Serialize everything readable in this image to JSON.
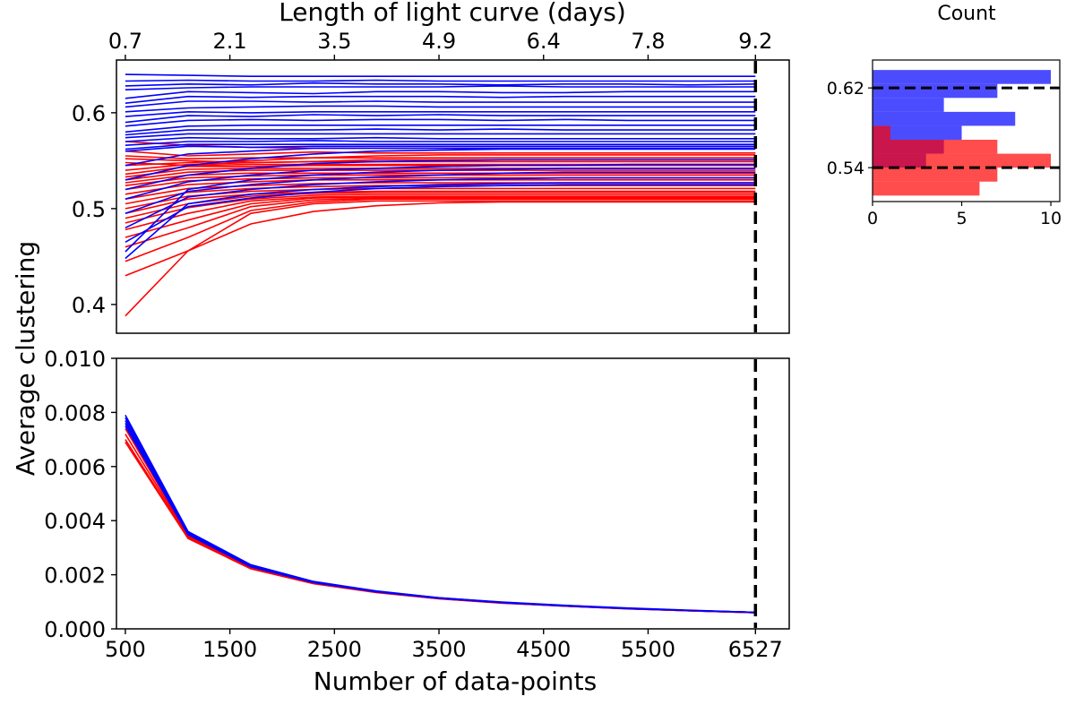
{
  "colors": {
    "blue": "#0000ff",
    "red": "#ff0000",
    "threshold": "#000000"
  },
  "chart_data": [
    {
      "id": "top",
      "type": "line",
      "top_axis_label": "Length of light curve (days)",
      "top_ticks": [
        "0.7",
        "2.1",
        "3.5",
        "4.9",
        "6.4",
        "7.8",
        "9.2"
      ],
      "ylabel": "Average clustering",
      "xlim": [
        415,
        6850
      ],
      "ylim": [
        0.37,
        0.655
      ],
      "yticks": [
        0.4,
        0.5,
        0.6
      ],
      "ytick_labels": [
        "0.4",
        "0.5",
        "0.6"
      ],
      "vline_x": 6527,
      "x": [
        500,
        1100,
        1700,
        2300,
        2900,
        3500,
        4100,
        4700,
        5300,
        5900,
        6527
      ],
      "series_blue": [
        [
          0.64,
          0.639,
          0.638,
          0.638,
          0.638,
          0.638,
          0.638,
          0.638,
          0.638,
          0.638,
          0.638
        ],
        [
          0.633,
          0.634,
          0.633,
          0.633,
          0.634,
          0.633,
          0.633,
          0.633,
          0.633,
          0.633,
          0.633
        ],
        [
          0.628,
          0.63,
          0.629,
          0.631,
          0.63,
          0.63,
          0.629,
          0.63,
          0.63,
          0.629,
          0.63
        ],
        [
          0.624,
          0.626,
          0.627,
          0.627,
          0.627,
          0.627,
          0.628,
          0.627,
          0.627,
          0.627,
          0.627
        ],
        [
          0.615,
          0.622,
          0.621,
          0.62,
          0.622,
          0.622,
          0.621,
          0.621,
          0.622,
          0.622,
          0.622
        ],
        [
          0.61,
          0.617,
          0.616,
          0.617,
          0.617,
          0.617,
          0.616,
          0.617,
          0.617,
          0.617,
          0.617
        ],
        [
          0.606,
          0.612,
          0.612,
          0.611,
          0.612,
          0.611,
          0.611,
          0.611,
          0.611,
          0.611,
          0.611
        ],
        [
          0.601,
          0.605,
          0.606,
          0.607,
          0.607,
          0.606,
          0.606,
          0.606,
          0.606,
          0.606,
          0.606
        ],
        [
          0.596,
          0.601,
          0.6,
          0.601,
          0.601,
          0.601,
          0.601,
          0.601,
          0.601,
          0.601,
          0.601
        ],
        [
          0.59,
          0.597,
          0.596,
          0.598,
          0.597,
          0.598,
          0.597,
          0.597,
          0.597,
          0.597,
          0.597
        ],
        [
          0.586,
          0.592,
          0.593,
          0.592,
          0.593,
          0.593,
          0.592,
          0.593,
          0.592,
          0.592,
          0.592
        ],
        [
          0.58,
          0.586,
          0.587,
          0.587,
          0.587,
          0.587,
          0.587,
          0.587,
          0.587,
          0.587,
          0.587
        ],
        [
          0.577,
          0.582,
          0.582,
          0.582,
          0.583,
          0.582,
          0.583,
          0.582,
          0.582,
          0.582,
          0.582
        ],
        [
          0.574,
          0.578,
          0.578,
          0.578,
          0.578,
          0.578,
          0.578,
          0.578,
          0.578,
          0.578,
          0.578
        ],
        [
          0.57,
          0.574,
          0.573,
          0.573,
          0.574,
          0.573,
          0.573,
          0.573,
          0.573,
          0.573,
          0.573
        ],
        [
          0.566,
          0.57,
          0.57,
          0.571,
          0.57,
          0.57,
          0.57,
          0.57,
          0.57,
          0.57,
          0.57
        ],
        [
          0.562,
          0.567,
          0.567,
          0.567,
          0.567,
          0.567,
          0.567,
          0.567,
          0.567,
          0.567,
          0.567
        ],
        [
          0.56,
          0.565,
          0.564,
          0.565,
          0.565,
          0.565,
          0.565,
          0.565,
          0.565,
          0.565,
          0.565
        ],
        [
          0.545,
          0.557,
          0.56,
          0.563,
          0.563,
          0.563,
          0.563,
          0.563,
          0.563,
          0.563,
          0.563
        ],
        [
          0.53,
          0.545,
          0.552,
          0.557,
          0.56,
          0.561,
          0.562,
          0.562,
          0.562,
          0.562,
          0.562
        ],
        [
          0.52,
          0.535,
          0.542,
          0.547,
          0.549,
          0.55,
          0.551,
          0.551,
          0.551,
          0.551,
          0.551
        ],
        [
          0.51,
          0.528,
          0.535,
          0.54,
          0.542,
          0.544,
          0.545,
          0.545,
          0.546,
          0.546,
          0.546
        ],
        [
          0.495,
          0.518,
          0.525,
          0.53,
          0.533,
          0.535,
          0.537,
          0.538,
          0.538,
          0.538,
          0.538
        ],
        [
          0.48,
          0.512,
          0.52,
          0.525,
          0.528,
          0.53,
          0.531,
          0.532,
          0.532,
          0.532,
          0.532
        ],
        [
          0.465,
          0.502,
          0.511,
          0.517,
          0.521,
          0.523,
          0.524,
          0.525,
          0.525,
          0.525,
          0.525
        ],
        [
          0.455,
          0.52,
          0.53,
          0.535,
          0.538,
          0.54,
          0.541,
          0.542,
          0.542,
          0.542,
          0.542
        ],
        [
          0.448,
          0.505,
          0.515,
          0.52,
          0.523,
          0.525,
          0.526,
          0.527,
          0.527,
          0.527,
          0.527
        ]
      ],
      "series_red": [
        [
          0.57,
          0.566,
          0.564,
          0.563,
          0.563,
          0.563,
          0.563,
          0.563,
          0.563,
          0.563,
          0.563
        ],
        [
          0.56,
          0.555,
          0.557,
          0.559,
          0.558,
          0.558,
          0.558,
          0.558,
          0.558,
          0.558,
          0.558
        ],
        [
          0.555,
          0.552,
          0.553,
          0.553,
          0.553,
          0.553,
          0.553,
          0.553,
          0.553,
          0.553,
          0.553
        ],
        [
          0.552,
          0.55,
          0.548,
          0.549,
          0.549,
          0.549,
          0.549,
          0.549,
          0.549,
          0.549,
          0.549
        ],
        [
          0.548,
          0.545,
          0.546,
          0.546,
          0.546,
          0.546,
          0.546,
          0.546,
          0.546,
          0.546,
          0.546
        ],
        [
          0.545,
          0.548,
          0.55,
          0.553,
          0.555,
          0.556,
          0.556,
          0.556,
          0.556,
          0.556,
          0.556
        ],
        [
          0.54,
          0.546,
          0.548,
          0.549,
          0.551,
          0.551,
          0.551,
          0.551,
          0.551,
          0.551,
          0.551
        ],
        [
          0.536,
          0.544,
          0.544,
          0.545,
          0.545,
          0.545,
          0.545,
          0.545,
          0.545,
          0.545,
          0.545
        ],
        [
          0.533,
          0.541,
          0.542,
          0.542,
          0.542,
          0.542,
          0.542,
          0.542,
          0.542,
          0.542,
          0.542
        ],
        [
          0.53,
          0.538,
          0.54,
          0.54,
          0.54,
          0.54,
          0.54,
          0.54,
          0.54,
          0.54,
          0.54
        ],
        [
          0.527,
          0.535,
          0.537,
          0.537,
          0.537,
          0.537,
          0.537,
          0.537,
          0.537,
          0.537,
          0.537
        ],
        [
          0.524,
          0.532,
          0.534,
          0.535,
          0.535,
          0.535,
          0.535,
          0.535,
          0.535,
          0.535,
          0.535
        ],
        [
          0.52,
          0.529,
          0.531,
          0.532,
          0.532,
          0.532,
          0.532,
          0.532,
          0.532,
          0.532,
          0.532
        ],
        [
          0.515,
          0.525,
          0.528,
          0.53,
          0.53,
          0.53,
          0.53,
          0.53,
          0.53,
          0.53,
          0.53
        ],
        [
          0.51,
          0.521,
          0.524,
          0.526,
          0.527,
          0.527,
          0.527,
          0.527,
          0.527,
          0.527,
          0.527
        ],
        [
          0.505,
          0.517,
          0.521,
          0.523,
          0.524,
          0.524,
          0.524,
          0.524,
          0.524,
          0.524,
          0.524
        ],
        [
          0.5,
          0.513,
          0.518,
          0.52,
          0.521,
          0.521,
          0.521,
          0.521,
          0.521,
          0.521,
          0.521
        ],
        [
          0.495,
          0.51,
          0.515,
          0.517,
          0.518,
          0.518,
          0.518,
          0.518,
          0.518,
          0.518,
          0.518
        ],
        [
          0.49,
          0.505,
          0.513,
          0.516,
          0.517,
          0.517,
          0.517,
          0.517,
          0.517,
          0.517,
          0.517
        ],
        [
          0.485,
          0.501,
          0.51,
          0.514,
          0.515,
          0.515,
          0.515,
          0.515,
          0.515,
          0.515,
          0.515
        ],
        [
          0.478,
          0.495,
          0.508,
          0.512,
          0.513,
          0.513,
          0.513,
          0.513,
          0.513,
          0.513,
          0.513
        ],
        [
          0.47,
          0.488,
          0.505,
          0.511,
          0.512,
          0.512,
          0.512,
          0.512,
          0.512,
          0.512,
          0.512
        ],
        [
          0.46,
          0.48,
          0.502,
          0.509,
          0.511,
          0.511,
          0.511,
          0.511,
          0.511,
          0.511,
          0.511
        ],
        [
          0.445,
          0.47,
          0.498,
          0.507,
          0.51,
          0.51,
          0.51,
          0.51,
          0.51,
          0.51,
          0.51
        ],
        [
          0.43,
          0.456,
          0.495,
          0.505,
          0.508,
          0.508,
          0.508,
          0.508,
          0.508,
          0.508,
          0.508
        ],
        [
          0.388,
          0.456,
          0.484,
          0.497,
          0.503,
          0.506,
          0.507,
          0.507,
          0.507,
          0.507,
          0.507
        ]
      ]
    },
    {
      "id": "bottom",
      "type": "line",
      "xlabel": "Number of data-points",
      "xlim": [
        415,
        6850
      ],
      "xticks": [
        500,
        1500,
        2500,
        3500,
        4500,
        5500,
        6527
      ],
      "xtick_labels": [
        "500",
        "1500",
        "2500",
        "3500",
        "4500",
        "5500",
        "6527"
      ],
      "ylim": [
        0.0,
        0.01
      ],
      "yticks": [
        0.0,
        0.002,
        0.004,
        0.006,
        0.008,
        0.01
      ],
      "ytick_labels": [
        "0.000",
        "0.002",
        "0.004",
        "0.006",
        "0.008",
        "0.010"
      ],
      "vline_x": 6527,
      "x": [
        500,
        1100,
        1700,
        2300,
        2900,
        3500,
        4100,
        4700,
        5300,
        5900,
        6527
      ],
      "series_blue": [
        [
          0.0079,
          0.0036,
          0.00237,
          0.00175,
          0.0014,
          0.00115,
          0.00099,
          0.00087,
          0.00077,
          0.00069,
          0.00061
        ],
        [
          0.0078,
          0.00357,
          0.00235,
          0.00174,
          0.00139,
          0.00115,
          0.00098,
          0.00086,
          0.00076,
          0.00068,
          0.00061
        ],
        [
          0.0077,
          0.00354,
          0.00233,
          0.00173,
          0.00138,
          0.00114,
          0.00098,
          0.00086,
          0.00076,
          0.00068,
          0.00061
        ],
        [
          0.0076,
          0.00351,
          0.00231,
          0.00172,
          0.00137,
          0.00114,
          0.00097,
          0.00085,
          0.00076,
          0.00068,
          0.00061
        ],
        [
          0.0075,
          0.00348,
          0.00229,
          0.00171,
          0.00137,
          0.00113,
          0.00097,
          0.00085,
          0.00075,
          0.00068,
          0.00061
        ]
      ],
      "series_red": [
        [
          0.0074,
          0.00345,
          0.00228,
          0.0017,
          0.00136,
          0.00113,
          0.00097,
          0.00085,
          0.00075,
          0.00067,
          0.0006
        ],
        [
          0.0072,
          0.00341,
          0.00226,
          0.00169,
          0.00135,
          0.00112,
          0.00096,
          0.00084,
          0.00075,
          0.00067,
          0.0006
        ],
        [
          0.007,
          0.00337,
          0.00224,
          0.00168,
          0.00135,
          0.00112,
          0.00096,
          0.00084,
          0.00075,
          0.00067,
          0.0006
        ],
        [
          0.0069,
          0.00334,
          0.00222,
          0.00167,
          0.00134,
          0.00111,
          0.00095,
          0.00084,
          0.00074,
          0.00067,
          0.0006
        ]
      ]
    },
    {
      "id": "histogram",
      "type": "bar",
      "orientation": "horizontal",
      "title": "Count",
      "xlim": [
        0,
        10.5
      ],
      "xticks": [
        0,
        5,
        10
      ],
      "xtick_labels": [
        "0",
        "5",
        "10"
      ],
      "ylim": [
        0.506,
        0.648
      ],
      "yticks": [
        0.54,
        0.62
      ],
      "ytick_labels": [
        "0.54",
        "0.62"
      ],
      "bin_edges": [
        0.512,
        0.526,
        0.54,
        0.554,
        0.568,
        0.582,
        0.596,
        0.61,
        0.624,
        0.638
      ],
      "blue_counts": [
        0,
        0,
        3,
        4,
        5,
        8,
        4,
        7,
        10
      ],
      "red_counts": [
        6,
        7,
        10,
        7,
        1,
        0,
        0,
        0,
        0
      ],
      "hlines": [
        0.54,
        0.62
      ]
    }
  ]
}
